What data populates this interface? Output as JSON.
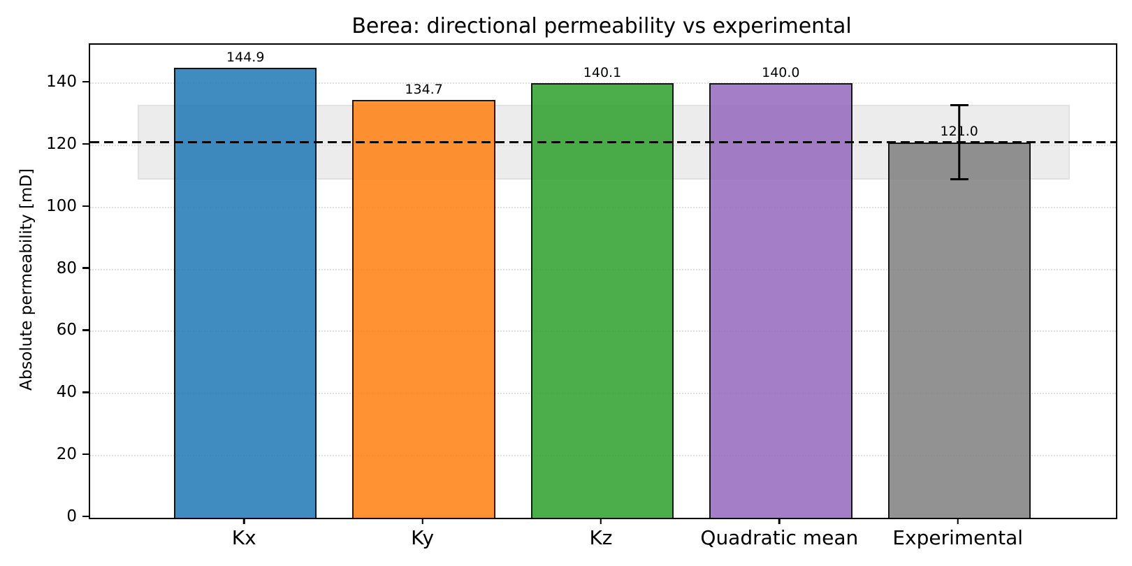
{
  "chart_data": {
    "type": "bar",
    "title": "Berea: directional permeability vs experimental",
    "ylabel": "Absolute permeability [mD]",
    "xlabel": "",
    "categories": [
      "Kx",
      "Ky",
      "Kz",
      "Quadratic mean",
      "Experimental"
    ],
    "values": [
      144.9,
      134.7,
      140.1,
      140.0,
      121.0
    ],
    "value_labels": [
      "144.9",
      "134.7",
      "140.1",
      "140.0",
      "121.0"
    ],
    "bar_colors": [
      "#1f77b4",
      "#ff7f0e",
      "#2ca02c",
      "#9467bd",
      "#7f7f7f"
    ],
    "bar_alpha": 0.85,
    "bar_edge_color": "#000000",
    "ylim": [
      0,
      152.4
    ],
    "yticks": [
      0,
      20,
      40,
      60,
      80,
      100,
      120,
      140
    ],
    "grid": "dotted horizontal gridlines",
    "legend": "none",
    "reference_line": {
      "value": 121.0,
      "style": "dashed",
      "color": "#000000"
    },
    "uncertainty_band": {
      "low": 109.0,
      "high": 133.0,
      "color": "#ececec"
    },
    "error_bar": {
      "category": "Experimental",
      "center": 121.0,
      "plus_minus": 12.0,
      "color": "#000000"
    }
  }
}
